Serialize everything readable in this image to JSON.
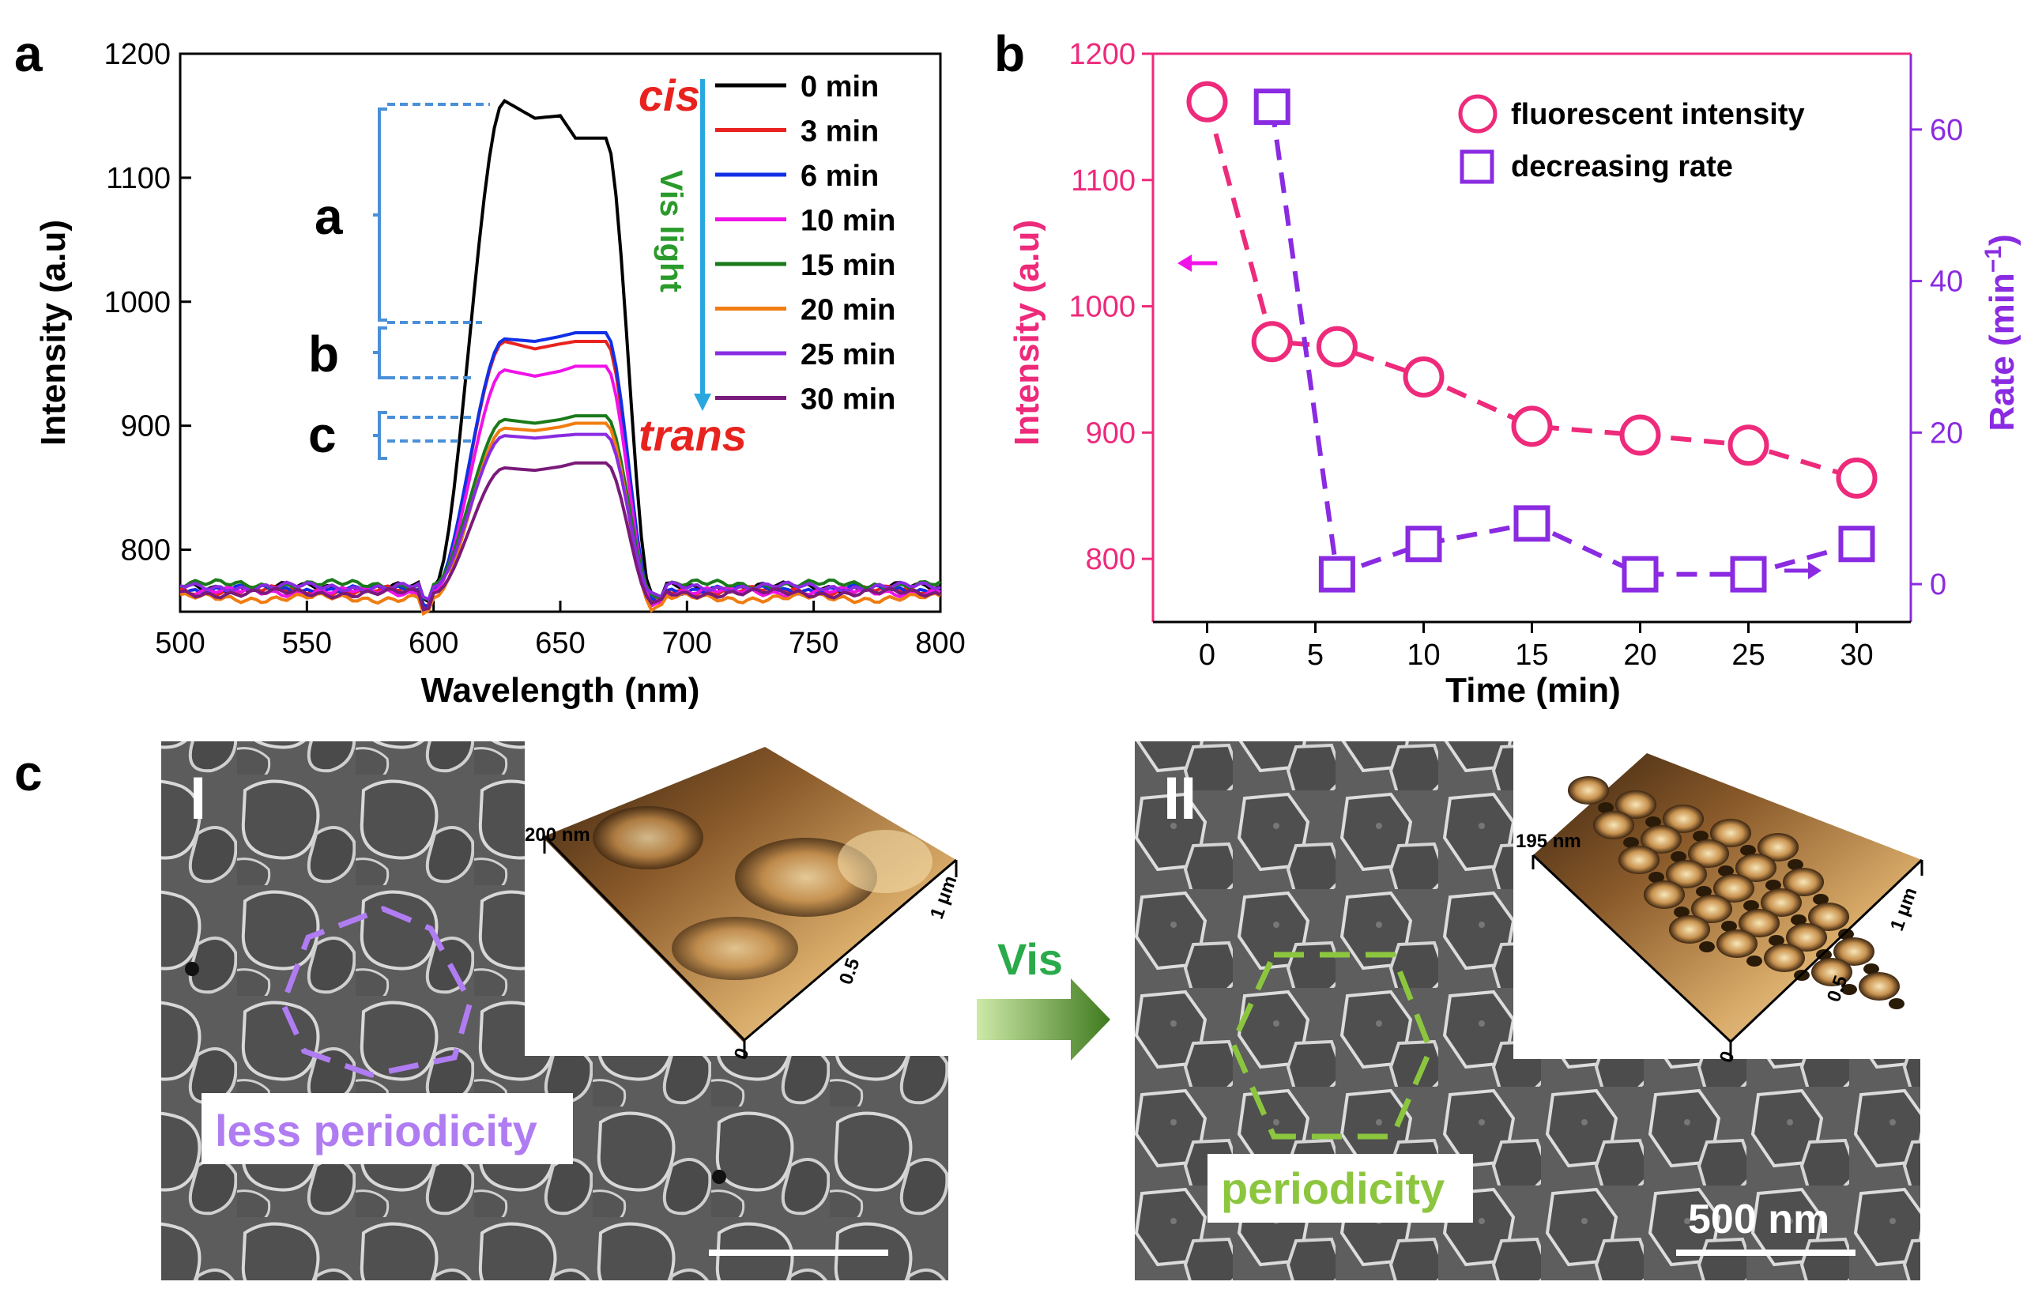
{
  "panels": {
    "a_letter": "a",
    "b_letter": "b",
    "c_letter": "c"
  },
  "chart_data": [
    {
      "id": "a",
      "type": "line",
      "xlabel": "Wavelength (nm)",
      "ylabel": "Intensity (a.u)",
      "xlim": [
        500,
        800
      ],
      "ylim": [
        750,
        1200
      ],
      "xticks": [
        "500",
        "550",
        "600",
        "650",
        "700",
        "750",
        "800"
      ],
      "yticks": [
        "800",
        "900",
        "1000",
        "1100",
        "1200"
      ],
      "series": [
        {
          "name": "0 min",
          "color": "#000000",
          "plateau": [
            1162,
            1148,
            1150,
            1132
          ],
          "baseline": 770
        },
        {
          "name": "3 min",
          "color": "#e8231f",
          "plateau": [
            968,
            962,
            966,
            968
          ],
          "baseline": 767
        },
        {
          "name": "6 min",
          "color": "#1230e6",
          "plateau": [
            970,
            968,
            972,
            975
          ],
          "baseline": 768
        },
        {
          "name": "10 min",
          "color": "#f012e8",
          "plateau": [
            945,
            940,
            944,
            948
          ],
          "baseline": 766
        },
        {
          "name": "15 min",
          "color": "#1a7a1a",
          "plateau": [
            905,
            902,
            905,
            908
          ],
          "baseline": 772
        },
        {
          "name": "20 min",
          "color": "#f07d10",
          "plateau": [
            898,
            896,
            899,
            902
          ],
          "baseline": 761
        },
        {
          "name": "25 min",
          "color": "#8a2be2",
          "plateau": [
            892,
            890,
            892,
            893
          ],
          "baseline": 770
        },
        {
          "name": "30 min",
          "color": "#7a1a7a",
          "plateau": [
            866,
            864,
            867,
            870
          ],
          "baseline": 765
        }
      ],
      "annotations": {
        "cis": "cis",
        "trans": "trans",
        "vis_light": "Vis light",
        "bracket_a": "a",
        "bracket_b": "b",
        "bracket_c": "c"
      }
    },
    {
      "id": "b",
      "type": "scatter",
      "xlabel": "Time (min)",
      "ylabel_left": "Intensity (a.u)",
      "ylabel_right": "Rate (min",
      "ylabel_right_sup": "−1",
      "ylabel_right_close": ")",
      "xlim": [
        -2.5,
        32.5
      ],
      "ylim_left": [
        750,
        1200
      ],
      "ylim_right": [
        -5,
        70
      ],
      "xticks": [
        "0",
        "5",
        "10",
        "15",
        "20",
        "25",
        "30"
      ],
      "yticks_left": [
        "800",
        "900",
        "1000",
        "1100",
        "1200"
      ],
      "yticks_right": [
        "0",
        "20",
        "40",
        "60"
      ],
      "series": [
        {
          "name": "fluorescent intensity",
          "axis": "left",
          "color": "#ee2a7b",
          "marker": "circle",
          "x": [
            0,
            3,
            6,
            10,
            15,
            20,
            25,
            30
          ],
          "y": [
            1162,
            972,
            968,
            944,
            905,
            898,
            890,
            864
          ]
        },
        {
          "name": "decreasing rate",
          "axis": "right",
          "color": "#8a2be2",
          "marker": "square",
          "x": [
            3,
            6,
            10,
            15,
            20,
            25,
            30
          ],
          "y": [
            63,
            1.3,
            5.3,
            8,
            1.3,
            1.3,
            5.3
          ]
        }
      ]
    }
  ],
  "panel_c": {
    "label_I": "I",
    "label_II": "II",
    "afm_height_I": "200 nm",
    "afm_height_II": "195 nm",
    "afm_axis_0": "0",
    "afm_axis_05": "0.5",
    "afm_axis_1": "1 μm",
    "caption_I": "less periodicity",
    "caption_II": "periodicity",
    "arrow_label": "Vis",
    "scale_bar": "500 nm"
  }
}
